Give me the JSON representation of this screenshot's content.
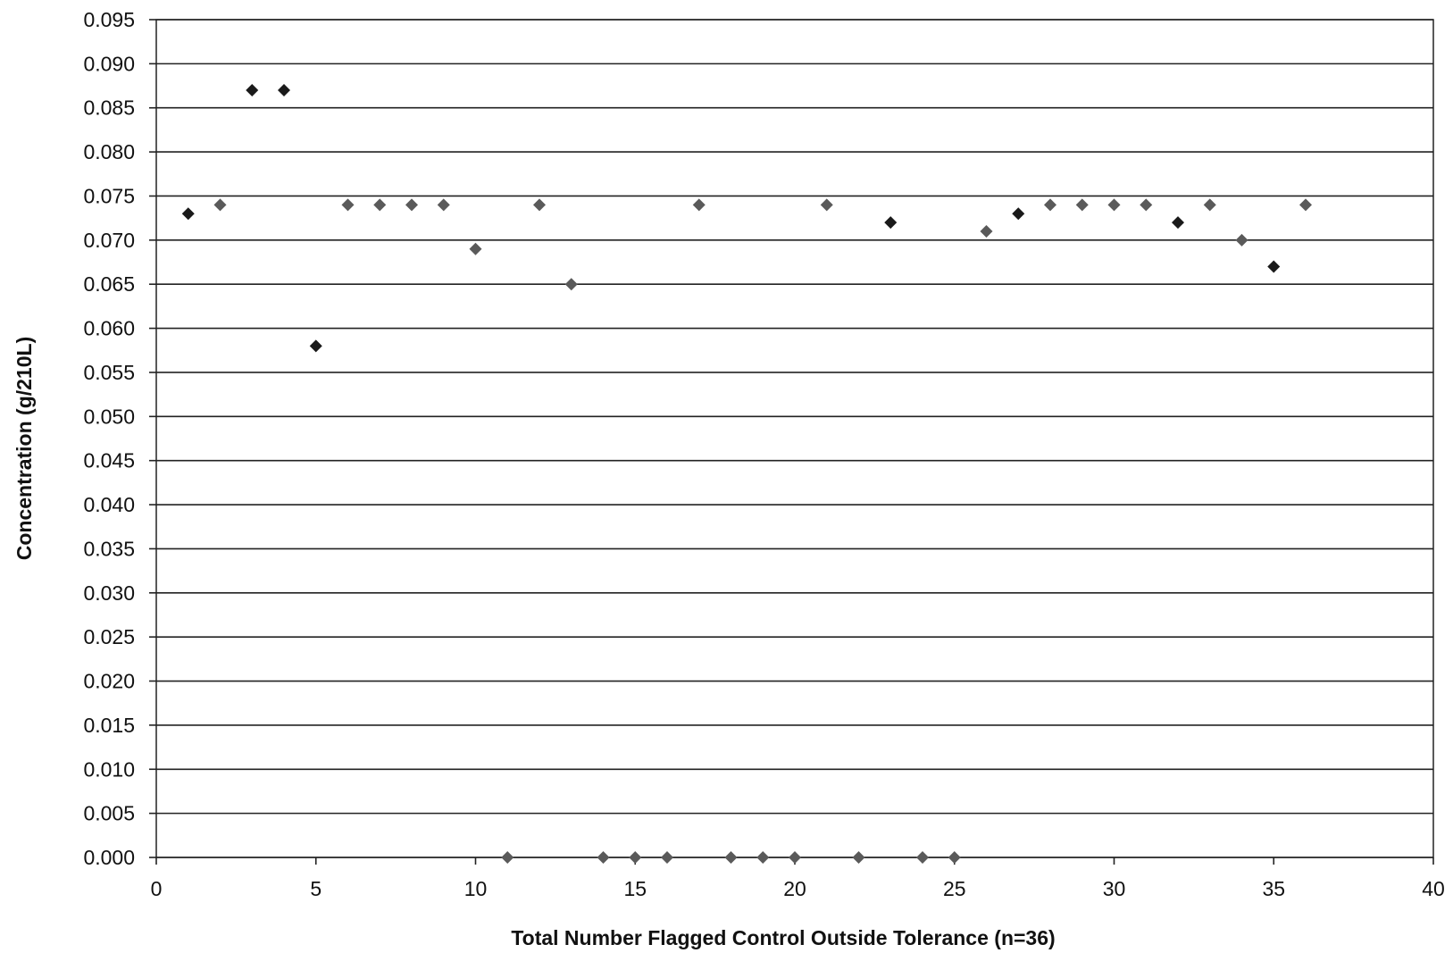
{
  "chart_data": {
    "type": "scatter",
    "title": "",
    "xlabel": "Total Number Flagged Control Outside Tolerance (n=36)",
    "ylabel": "Concentration (g/210L)",
    "xlim": [
      0,
      40
    ],
    "ylim": [
      0,
      0.095
    ],
    "x_ticks": [
      0,
      5,
      10,
      15,
      20,
      25,
      30,
      35,
      40
    ],
    "x_tick_labels": [
      "0",
      "5",
      "10",
      "15",
      "20",
      "25",
      "30",
      "35",
      "40"
    ],
    "y_ticks": [
      0,
      0.005,
      0.01,
      0.015,
      0.02,
      0.025,
      0.03,
      0.035,
      0.04,
      0.045,
      0.05,
      0.055,
      0.06,
      0.065,
      0.07,
      0.075,
      0.08,
      0.085,
      0.09,
      0.095
    ],
    "y_tick_labels": [
      "0.000",
      "0.005",
      "0.010",
      "0.015",
      "0.020",
      "0.025",
      "0.030",
      "0.035",
      "0.040",
      "0.045",
      "0.050",
      "0.055",
      "0.060",
      "0.065",
      "0.070",
      "0.075",
      "0.080",
      "0.085",
      "0.090",
      "0.095"
    ],
    "grid": "horizontal",
    "legend": "none",
    "marker": "diamond",
    "colors": {
      "dark_marker": "#1a1a1a",
      "grey_marker": "#5a5a5a",
      "grid": "#222222"
    },
    "points": [
      {
        "x": 1,
        "y": 0.073,
        "shade": "dark"
      },
      {
        "x": 2,
        "y": 0.074,
        "shade": "grey"
      },
      {
        "x": 3,
        "y": 0.087,
        "shade": "dark"
      },
      {
        "x": 4,
        "y": 0.087,
        "shade": "dark"
      },
      {
        "x": 5,
        "y": 0.058,
        "shade": "dark"
      },
      {
        "x": 6,
        "y": 0.074,
        "shade": "grey"
      },
      {
        "x": 7,
        "y": 0.074,
        "shade": "grey"
      },
      {
        "x": 8,
        "y": 0.074,
        "shade": "grey"
      },
      {
        "x": 9,
        "y": 0.074,
        "shade": "grey"
      },
      {
        "x": 10,
        "y": 0.069,
        "shade": "grey"
      },
      {
        "x": 11,
        "y": 0.0,
        "shade": "grey"
      },
      {
        "x": 12,
        "y": 0.074,
        "shade": "grey"
      },
      {
        "x": 13,
        "y": 0.065,
        "shade": "grey"
      },
      {
        "x": 14,
        "y": 0.0,
        "shade": "grey"
      },
      {
        "x": 15,
        "y": 0.0,
        "shade": "grey"
      },
      {
        "x": 16,
        "y": 0.0,
        "shade": "grey"
      },
      {
        "x": 17,
        "y": 0.074,
        "shade": "grey"
      },
      {
        "x": 18,
        "y": 0.0,
        "shade": "grey"
      },
      {
        "x": 19,
        "y": 0.0,
        "shade": "grey"
      },
      {
        "x": 20,
        "y": 0.0,
        "shade": "grey"
      },
      {
        "x": 21,
        "y": 0.074,
        "shade": "grey"
      },
      {
        "x": 22,
        "y": 0.0,
        "shade": "grey"
      },
      {
        "x": 23,
        "y": 0.072,
        "shade": "dark"
      },
      {
        "x": 24,
        "y": 0.0,
        "shade": "grey"
      },
      {
        "x": 25,
        "y": 0.0,
        "shade": "grey"
      },
      {
        "x": 26,
        "y": 0.071,
        "shade": "grey"
      },
      {
        "x": 27,
        "y": 0.073,
        "shade": "dark"
      },
      {
        "x": 28,
        "y": 0.074,
        "shade": "grey"
      },
      {
        "x": 29,
        "y": 0.074,
        "shade": "grey"
      },
      {
        "x": 30,
        "y": 0.074,
        "shade": "grey"
      },
      {
        "x": 31,
        "y": 0.074,
        "shade": "grey"
      },
      {
        "x": 32,
        "y": 0.072,
        "shade": "dark"
      },
      {
        "x": 33,
        "y": 0.074,
        "shade": "grey"
      },
      {
        "x": 34,
        "y": 0.07,
        "shade": "grey"
      },
      {
        "x": 35,
        "y": 0.067,
        "shade": "dark"
      },
      {
        "x": 36,
        "y": 0.074,
        "shade": "grey"
      }
    ]
  }
}
